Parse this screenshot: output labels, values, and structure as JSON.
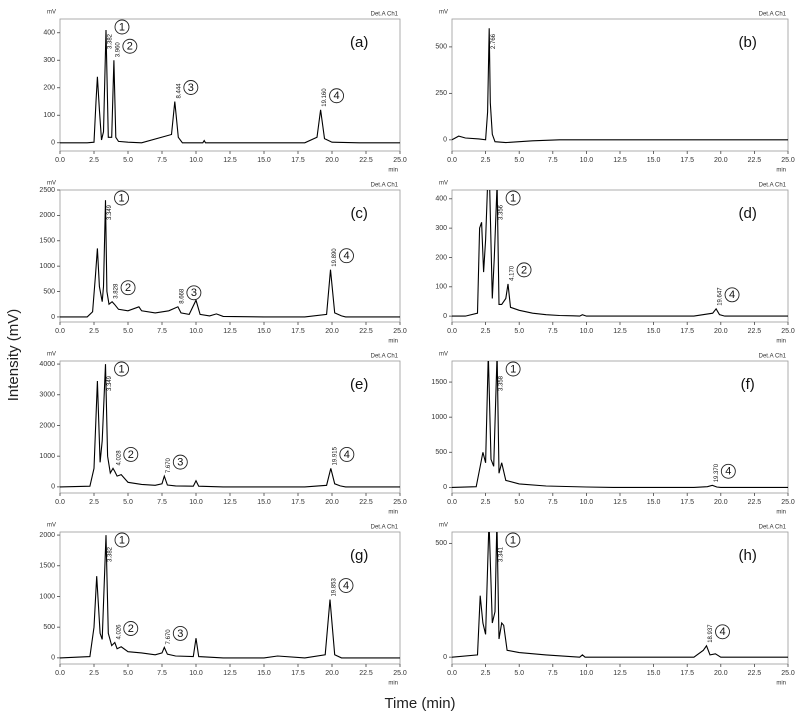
{
  "figure": {
    "ylabel": "Intensity (mV)",
    "xlabel": "Time (min)"
  },
  "chart_data": [
    {
      "type": "line",
      "label": "(a)",
      "yunit": "mV",
      "xunit": "min",
      "detector": "Det.A Ch1",
      "color": "#000000",
      "x": [
        0,
        1,
        2,
        2.5,
        2.65,
        2.75,
        2.9,
        3.05,
        3.2,
        3.38,
        3.55,
        3.8,
        3.96,
        4.1,
        4.3,
        5,
        6,
        8.2,
        8.444,
        8.7,
        9,
        10.5,
        10.6,
        10.7,
        12,
        15,
        18,
        18.9,
        19.16,
        19.45,
        20,
        22,
        25
      ],
      "values": [
        0,
        0,
        0,
        2,
        150,
        240,
        120,
        10,
        40,
        410,
        20,
        20,
        300,
        20,
        5,
        2,
        0,
        30,
        150,
        20,
        0,
        0,
        8,
        0,
        0,
        0,
        0,
        20,
        120,
        15,
        2,
        0,
        0
      ],
      "xlim": [
        0,
        25
      ],
      "ylim": [
        -30,
        450
      ],
      "yticks": [
        0,
        100,
        200,
        300,
        400
      ],
      "xticks": [
        {
          "value": 0,
          "label": "0.0"
        },
        {
          "value": 2.5,
          "label": "2.5"
        },
        {
          "value": 5,
          "label": "5.0"
        },
        {
          "value": 7.5,
          "label": "7.5"
        },
        {
          "value": 10,
          "label": "10.0"
        },
        {
          "value": 12.5,
          "label": "12.5"
        },
        {
          "value": 15,
          "label": "15.0"
        },
        {
          "value": 17.5,
          "label": "17.5"
        },
        {
          "value": 20,
          "label": "20.0"
        },
        {
          "value": 22.5,
          "label": "22.5"
        },
        {
          "value": 25,
          "label": "25.0"
        }
      ],
      "peaks": [
        {
          "number": "1",
          "rt": {
            "value": 3.382,
            "label": "3.382"
          }
        },
        {
          "number": "2",
          "rt": {
            "value": 3.96,
            "label": "3.960"
          }
        },
        {
          "number": "3",
          "rt": {
            "value": 8.444,
            "label": "8.444"
          }
        },
        {
          "number": "4",
          "rt": {
            "value": 19.16,
            "label": "19.160"
          }
        }
      ]
    },
    {
      "type": "line",
      "label": "(b)",
      "yunit": "mV",
      "xunit": "min",
      "detector": "Det.A Ch1",
      "color": "#000000",
      "x": [
        0,
        0.5,
        1,
        2,
        2.5,
        2.65,
        2.766,
        2.85,
        3,
        3.2,
        4,
        5,
        6,
        8,
        12,
        16,
        20,
        22,
        25
      ],
      "values": [
        0,
        20,
        10,
        5,
        0,
        150,
        600,
        200,
        30,
        -10,
        -15,
        -10,
        -5,
        0,
        0,
        0,
        0,
        0,
        0
      ],
      "xlim": [
        0,
        25
      ],
      "ylim": [
        -60,
        650
      ],
      "yticks": [
        0,
        250,
        500
      ],
      "xticks": [
        {
          "value": 0,
          "label": "0.0"
        },
        {
          "value": 2.5,
          "label": "2.5"
        },
        {
          "value": 5,
          "label": "5.0"
        },
        {
          "value": 7.5,
          "label": "7.5"
        },
        {
          "value": 10,
          "label": "10.0"
        },
        {
          "value": 12.5,
          "label": "12.5"
        },
        {
          "value": 15,
          "label": "15.0"
        },
        {
          "value": 17.5,
          "label": "17.5"
        },
        {
          "value": 20,
          "label": "20.0"
        },
        {
          "value": 22.5,
          "label": "22.5"
        },
        {
          "value": 25,
          "label": "25.0"
        }
      ],
      "peaks": [
        {
          "rt": {
            "value": 2.766,
            "label": "2.766"
          }
        }
      ]
    },
    {
      "type": "line",
      "label": "(c)",
      "yunit": "mV",
      "xunit": "min",
      "detector": "Det.A Ch1",
      "color": "#000000",
      "x": [
        0,
        2,
        2.4,
        2.6,
        2.75,
        2.9,
        3.1,
        3.2,
        3.349,
        3.45,
        3.6,
        3.828,
        4,
        4.3,
        5,
        5.8,
        6,
        7,
        8,
        8.668,
        8.9,
        9.5,
        10,
        10.3,
        11,
        11.5,
        12,
        15,
        18,
        19.6,
        19.89,
        20.2,
        20.7,
        21,
        23,
        25
      ],
      "values": [
        0,
        0,
        100,
        800,
        1350,
        600,
        300,
        600,
        2300,
        500,
        250,
        300,
        250,
        150,
        120,
        200,
        120,
        80,
        120,
        200,
        80,
        50,
        330,
        50,
        20,
        60,
        10,
        0,
        0,
        50,
        930,
        80,
        20,
        0,
        0,
        0
      ],
      "xlim": [
        0,
        25
      ],
      "ylim": [
        -100,
        2500
      ],
      "yticks": [
        0,
        500,
        1000,
        1500,
        2000,
        2500
      ],
      "xticks": [
        {
          "value": 0,
          "label": "0.0"
        },
        {
          "value": 2.5,
          "label": "2.5"
        },
        {
          "value": 5,
          "label": "5.0"
        },
        {
          "value": 7.5,
          "label": "7.5"
        },
        {
          "value": 10,
          "label": "10.0"
        },
        {
          "value": 12.5,
          "label": "12.5"
        },
        {
          "value": 15,
          "label": "15.0"
        },
        {
          "value": 17.5,
          "label": "17.5"
        },
        {
          "value": 20,
          "label": "20.0"
        },
        {
          "value": 22.5,
          "label": "22.5"
        },
        {
          "value": 25,
          "label": "25.0"
        }
      ],
      "peaks": [
        {
          "number": "1",
          "rt": {
            "value": 3.349,
            "label": "3.349"
          }
        },
        {
          "number": "2",
          "rt": {
            "value": 3.828,
            "label": "3.828"
          }
        },
        {
          "number": "3",
          "rt": {
            "value": 8.668,
            "label": "8.668"
          }
        },
        {
          "number": "4",
          "rt": {
            "value": 19.89,
            "label": "19.890"
          }
        }
      ]
    },
    {
      "type": "line",
      "label": "(d)",
      "yunit": "mV",
      "xunit": "min",
      "detector": "Det.A Ch1",
      "color": "#000000",
      "x": [
        0,
        1,
        1.9,
        2.05,
        2.2,
        2.35,
        2.5,
        2.65,
        2.8,
        3,
        3.15,
        3.356,
        3.5,
        3.7,
        4,
        4.17,
        4.35,
        5,
        6,
        7,
        8,
        9,
        9.5,
        9.7,
        10,
        12,
        15,
        18,
        19.4,
        19.647,
        19.9,
        20.3,
        21,
        25
      ],
      "values": [
        0,
        0,
        10,
        300,
        320,
        150,
        260,
        450,
        450,
        60,
        200,
        450,
        40,
        40,
        60,
        110,
        30,
        20,
        10,
        5,
        2,
        1,
        0,
        5,
        0,
        0,
        0,
        0,
        10,
        25,
        5,
        0,
        0,
        0
      ],
      "xlim": [
        0,
        25
      ],
      "ylim": [
        -20,
        430
      ],
      "yticks": [
        0,
        100,
        200,
        300,
        400
      ],
      "xticks": [
        {
          "value": 0,
          "label": "0.0"
        },
        {
          "value": 2.5,
          "label": "2.5"
        },
        {
          "value": 5,
          "label": "5.0"
        },
        {
          "value": 7.5,
          "label": "7.5"
        },
        {
          "value": 10,
          "label": "10.0"
        },
        {
          "value": 12.5,
          "label": "12.5"
        },
        {
          "value": 15,
          "label": "15.0"
        },
        {
          "value": 17.5,
          "label": "17.5"
        },
        {
          "value": 20,
          "label": "20.0"
        },
        {
          "value": 22.5,
          "label": "22.5"
        },
        {
          "value": 25,
          "label": "25.0"
        }
      ],
      "peaks": [
        {
          "number": "1",
          "rt": {
            "value": 3.356,
            "label": "3.356"
          }
        },
        {
          "number": "2",
          "rt": {
            "value": 4.17,
            "label": "4.170"
          }
        },
        {
          "number": "4",
          "rt": {
            "value": 19.647,
            "label": "19.647"
          }
        }
      ]
    },
    {
      "type": "line",
      "label": "(e)",
      "yunit": "mV",
      "xunit": "min",
      "detector": "Det.A Ch1",
      "color": "#000000",
      "x": [
        0,
        2.2,
        2.5,
        2.75,
        2.95,
        3.1,
        3.349,
        3.5,
        3.7,
        3.9,
        4.028,
        4.2,
        4.5,
        5,
        6,
        7,
        7.5,
        7.67,
        7.9,
        8.5,
        9.8,
        10,
        10.2,
        12,
        15,
        18,
        19.6,
        19.915,
        20.2,
        20.6,
        21,
        25
      ],
      "values": [
        0,
        20,
        600,
        3450,
        800,
        1500,
        4000,
        1000,
        450,
        600,
        500,
        350,
        400,
        150,
        80,
        50,
        100,
        350,
        60,
        30,
        20,
        200,
        20,
        0,
        0,
        0,
        50,
        600,
        100,
        30,
        0,
        0
      ],
      "xlim": [
        0,
        25
      ],
      "ylim": [
        -200,
        4100
      ],
      "yticks": [
        0,
        1000,
        2000,
        3000,
        4000
      ],
      "xticks": [
        {
          "value": 0,
          "label": "0.0"
        },
        {
          "value": 2.5,
          "label": "2.5"
        },
        {
          "value": 5,
          "label": "5.0"
        },
        {
          "value": 7.5,
          "label": "7.5"
        },
        {
          "value": 10,
          "label": "10.0"
        },
        {
          "value": 12.5,
          "label": "12.5"
        },
        {
          "value": 15,
          "label": "15.0"
        },
        {
          "value": 17.5,
          "label": "17.5"
        },
        {
          "value": 20,
          "label": "20.0"
        },
        {
          "value": 22.5,
          "label": "22.5"
        },
        {
          "value": 25,
          "label": "25.0"
        }
      ],
      "peaks": [
        {
          "number": "1",
          "rt": {
            "value": 3.349,
            "label": "3.349"
          }
        },
        {
          "number": "2",
          "rt": {
            "value": 4.028,
            "label": "4.028"
          }
        },
        {
          "number": "3",
          "rt": {
            "value": 7.67,
            "label": "7.670"
          }
        },
        {
          "number": "4",
          "rt": {
            "value": 19.915,
            "label": "19.915"
          }
        }
      ]
    },
    {
      "type": "line",
      "label": "(f)",
      "yunit": "mV",
      "xunit": "min",
      "detector": "Det.A Ch1",
      "color": "#000000",
      "x": [
        0,
        1.8,
        2.1,
        2.3,
        2.5,
        2.7,
        2.9,
        3.1,
        3.358,
        3.5,
        3.7,
        4,
        5,
        7,
        10,
        12,
        15,
        18,
        19,
        19.37,
        19.7,
        20,
        25
      ],
      "values": [
        0,
        10,
        300,
        500,
        350,
        1900,
        400,
        300,
        1900,
        200,
        350,
        100,
        50,
        20,
        5,
        0,
        0,
        0,
        10,
        30,
        5,
        0,
        0
      ],
      "xlim": [
        0,
        25
      ],
      "ylim": [
        -80,
        1800
      ],
      "yticks": [
        0,
        500,
        1000,
        1500
      ],
      "xticks": [
        {
          "value": 0,
          "label": "0.0"
        },
        {
          "value": 2.5,
          "label": "2.5"
        },
        {
          "value": 5,
          "label": "5.0"
        },
        {
          "value": 7.5,
          "label": "7.5"
        },
        {
          "value": 10,
          "label": "10.0"
        },
        {
          "value": 12.5,
          "label": "12.5"
        },
        {
          "value": 15,
          "label": "15.0"
        },
        {
          "value": 17.5,
          "label": "17.5"
        },
        {
          "value": 20,
          "label": "20.0"
        },
        {
          "value": 22.5,
          "label": "22.5"
        },
        {
          "value": 25,
          "label": "25.0"
        }
      ],
      "peaks": [
        {
          "number": "1",
          "rt": {
            "value": 3.358,
            "label": "3.358"
          }
        },
        {
          "number": "4",
          "rt": {
            "value": 19.37,
            "label": "19.370"
          }
        }
      ]
    },
    {
      "type": "line",
      "label": "(g)",
      "yunit": "mV",
      "xunit": "min",
      "detector": "Det.A Ch1",
      "color": "#000000",
      "x": [
        0,
        2.2,
        2.5,
        2.7,
        2.95,
        3.1,
        3.382,
        3.55,
        3.8,
        4.026,
        4.2,
        4.5,
        5,
        6,
        7,
        7.5,
        7.67,
        7.9,
        8.5,
        9.8,
        10,
        10.2,
        12,
        15,
        16,
        18,
        19.5,
        19.853,
        20.2,
        20.7,
        25
      ],
      "values": [
        0,
        20,
        500,
        1330,
        400,
        300,
        2000,
        400,
        200,
        250,
        150,
        180,
        100,
        80,
        50,
        80,
        170,
        60,
        30,
        20,
        320,
        20,
        0,
        0,
        30,
        0,
        50,
        950,
        50,
        0,
        0
      ],
      "xlim": [
        0,
        25
      ],
      "ylim": [
        -100,
        2050
      ],
      "yticks": [
        0,
        500,
        1000,
        1500,
        2000
      ],
      "xticks": [
        {
          "value": 0,
          "label": "0.0"
        },
        {
          "value": 2.5,
          "label": "2.5"
        },
        {
          "value": 5,
          "label": "5.0"
        },
        {
          "value": 7.5,
          "label": "7.5"
        },
        {
          "value": 10,
          "label": "10.0"
        },
        {
          "value": 12.5,
          "label": "12.5"
        },
        {
          "value": 15,
          "label": "15.0"
        },
        {
          "value": 17.5,
          "label": "17.5"
        },
        {
          "value": 20,
          "label": "20.0"
        },
        {
          "value": 22.5,
          "label": "22.5"
        },
        {
          "value": 25,
          "label": "25.0"
        }
      ],
      "peaks": [
        {
          "number": "1",
          "rt": {
            "value": 3.382,
            "label": "3.382"
          }
        },
        {
          "number": "2",
          "rt": {
            "value": 4.026,
            "label": "4.026"
          }
        },
        {
          "number": "3",
          "rt": {
            "value": 7.67,
            "label": "7.670"
          }
        },
        {
          "number": "4",
          "rt": {
            "value": 19.853,
            "label": "19.853"
          }
        }
      ]
    },
    {
      "type": "line",
      "label": "(h)",
      "yunit": "mV",
      "xunit": "min",
      "detector": "Det.A Ch1",
      "color": "#000000",
      "x": [
        0,
        1.9,
        2.1,
        2.3,
        2.5,
        2.75,
        3,
        3.2,
        3.341,
        3.5,
        3.7,
        3.85,
        4.1,
        5,
        7,
        9.5,
        9.7,
        9.9,
        12,
        15,
        18,
        18.7,
        18.937,
        19.2,
        19.6,
        20,
        25
      ],
      "values": [
        0,
        10,
        270,
        150,
        100,
        600,
        150,
        200,
        600,
        80,
        150,
        140,
        30,
        20,
        10,
        0,
        10,
        0,
        0,
        0,
        0,
        30,
        50,
        10,
        15,
        0,
        0
      ],
      "xlim": [
        0,
        25
      ],
      "ylim": [
        -30,
        550
      ],
      "yticks": [
        0,
        500
      ],
      "xticks": [
        {
          "value": 0,
          "label": "0.0"
        },
        {
          "value": 2.5,
          "label": "2.5"
        },
        {
          "value": 5,
          "label": "5.0"
        },
        {
          "value": 7.5,
          "label": "7.5"
        },
        {
          "value": 10,
          "label": "10.0"
        },
        {
          "value": 12.5,
          "label": "12.5"
        },
        {
          "value": 15,
          "label": "15.0"
        },
        {
          "value": 17.5,
          "label": "17.5"
        },
        {
          "value": 20,
          "label": "20.0"
        },
        {
          "value": 22.5,
          "label": "22.5"
        },
        {
          "value": 25,
          "label": "25.0"
        }
      ],
      "peaks": [
        {
          "number": "1",
          "rt": {
            "value": 3.341,
            "label": "3.341"
          }
        },
        {
          "number": "4",
          "rt": {
            "value": 18.937,
            "label": "18.937"
          }
        }
      ]
    }
  ]
}
